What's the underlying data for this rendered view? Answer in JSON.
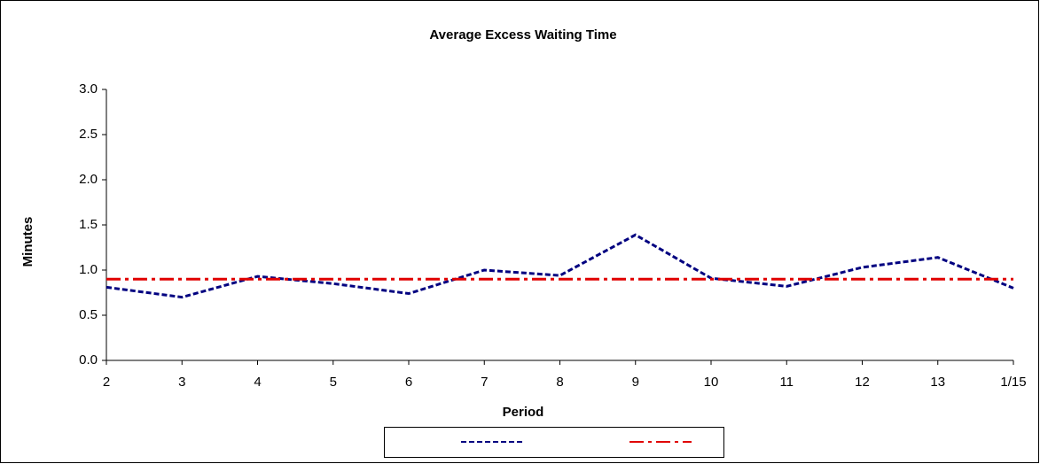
{
  "chart_data": {
    "type": "line",
    "title": "Average Excess Waiting Time",
    "x_label": "Period",
    "y_label": "Minutes",
    "categories": [
      "2",
      "3",
      "4",
      "5",
      "6",
      "7",
      "8",
      "9",
      "10",
      "11",
      "12",
      "13",
      "1/15"
    ],
    "series": [
      {
        "color": "#000080",
        "style": "dashed",
        "values": [
          0.81,
          0.7,
          0.93,
          0.85,
          0.74,
          1.0,
          0.94,
          1.39,
          0.91,
          0.82,
          1.03,
          1.14,
          0.8
        ]
      },
      {
        "color": "#e00000",
        "style": "dash-dot",
        "values": [
          0.9,
          0.9,
          0.9,
          0.9,
          0.9,
          0.9,
          0.9,
          0.9,
          0.9,
          0.9,
          0.9,
          0.9,
          0.9
        ]
      }
    ],
    "ylim": [
      0,
      3
    ],
    "yticks": [
      {
        "value": 0,
        "label": "0.0"
      },
      0.5,
      {
        "value": 1,
        "label": "1.0"
      },
      1.5,
      {
        "value": 2,
        "label": "2.0"
      },
      2.5,
      {
        "value": 3,
        "label": "3.0"
      }
    ],
    "grid": false,
    "legend": "bottom"
  }
}
